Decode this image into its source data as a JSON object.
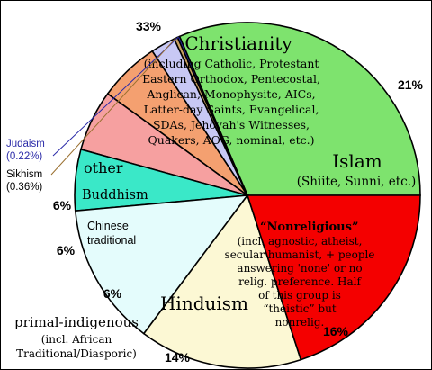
{
  "chart_data": {
    "type": "pie",
    "start_angle_deg": 0,
    "direction": "counterclockwise",
    "slices": [
      {
        "name": "Christianity",
        "value": 33,
        "pct_label": "33%",
        "color": "#7ee36e",
        "title": "Christianity",
        "lines": [
          "(including Catholic, Protestant",
          "Eastern Orthodox, Pentecostal,",
          "Anglican, Monophysite, AICs,",
          "Latter-day Saints, Evangelical,",
          "SDAs, Jehovah's Witnesses,",
          "Quakers, AOG, nominal, etc.)"
        ]
      },
      {
        "name": "Judaism",
        "value": 0.22,
        "pct_label": "Judaism (0.22%)",
        "color": "#3030c0",
        "lines": []
      },
      {
        "name": "Sikhism",
        "value": 0.36,
        "pct_label": "Sikhism (0.36%)",
        "color": "#c8a060",
        "lines": []
      },
      {
        "name": "other",
        "value": 2.42,
        "pct_label": "",
        "color": "#c8c8f4",
        "title": "other",
        "lines": []
      },
      {
        "name": "Buddhism",
        "value": 6,
        "pct_label": "6%",
        "color": "#f4a070",
        "title": "Buddhism",
        "lines": []
      },
      {
        "name": "Chinese traditional",
        "value": 6,
        "pct_label": "6%",
        "color": "#f6a0a0",
        "lines": [
          "Chinese",
          "traditional"
        ]
      },
      {
        "name": "primal-indigenous",
        "value": 6,
        "pct_label": "6%",
        "color": "#3ae8c8",
        "lines": []
      },
      {
        "name": "Hinduism",
        "value": 14,
        "pct_label": "14%",
        "color": "#e4fcfc",
        "title": "Hinduism",
        "lines": []
      },
      {
        "name": "Nonreligious",
        "value": 16,
        "pct_label": "16%",
        "color": "#fcf8d4",
        "title": "“Nonreligious”",
        "lines": [
          "(incl. agnostic, atheist,",
          "secular humanist, + people",
          "answering 'none' or no",
          "relig. preference. Half",
          "of this group is",
          "“theistic” but",
          "nonrelig."
        ]
      },
      {
        "name": "Islam",
        "value": 21,
        "pct_label": "21%",
        "color": "#f40000",
        "title": "Islam",
        "lines": [
          "(Shiite, Sunni, etc.)"
        ]
      }
    ],
    "outside_labels": {
      "judaism": [
        "Judaism",
        "(0.22%)"
      ],
      "sikhism": [
        "Sikhism",
        "(0.36%)"
      ],
      "primal": [
        "primal-indigenous",
        "(incl. African",
        "Traditional/Diasporic)"
      ]
    }
  }
}
